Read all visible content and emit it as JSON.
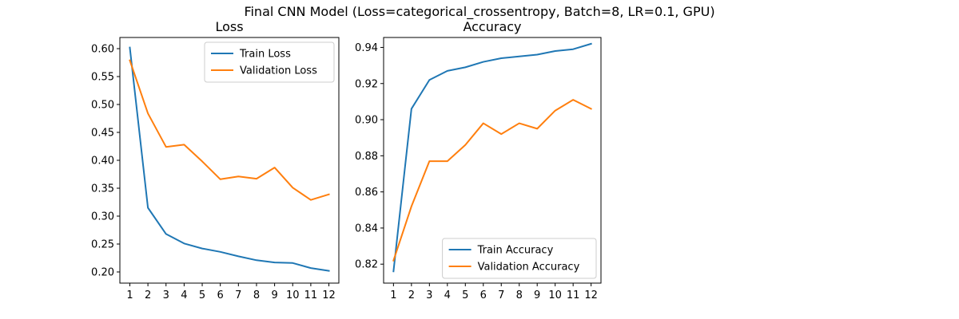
{
  "figure": {
    "suptitle": "Final CNN Model (Loss=categorical_crossentropy, Batch=8, LR=0.1, GPU)"
  },
  "chart_data": [
    {
      "type": "line",
      "title": "Loss",
      "xlabel": "",
      "ylabel": "",
      "x": [
        1,
        2,
        3,
        4,
        5,
        6,
        7,
        8,
        9,
        10,
        11,
        12
      ],
      "xticks": [
        "1",
        "2",
        "3",
        "4",
        "5",
        "6",
        "7",
        "8",
        "9",
        "10",
        "11",
        "12"
      ],
      "xlim": [
        0.45,
        12.55
      ],
      "ylim": [
        0.18,
        0.62
      ],
      "yticks": [
        "0.20",
        "0.25",
        "0.30",
        "0.35",
        "0.40",
        "0.45",
        "0.50",
        "0.55",
        "0.60"
      ],
      "yticks_values": [
        0.2,
        0.25,
        0.3,
        0.35,
        0.4,
        0.45,
        0.5,
        0.55,
        0.6
      ],
      "grid": false,
      "legend_position": "upper right",
      "series": [
        {
          "name": "Train Loss",
          "color": "#1f77b4",
          "values": [
            0.602,
            0.315,
            0.268,
            0.251,
            0.242,
            0.236,
            0.228,
            0.221,
            0.217,
            0.216,
            0.207,
            0.202
          ]
        },
        {
          "name": "Validation Loss",
          "color": "#ff7f0e",
          "values": [
            0.579,
            0.484,
            0.424,
            0.428,
            0.398,
            0.366,
            0.371,
            0.367,
            0.387,
            0.351,
            0.329,
            0.339
          ]
        }
      ]
    },
    {
      "type": "line",
      "title": "Accuracy",
      "xlabel": "",
      "ylabel": "",
      "x": [
        1,
        2,
        3,
        4,
        5,
        6,
        7,
        8,
        9,
        10,
        11,
        12
      ],
      "xticks": [
        "1",
        "2",
        "3",
        "4",
        "5",
        "6",
        "7",
        "8",
        "9",
        "10",
        "11",
        "12"
      ],
      "xlim": [
        0.45,
        12.55
      ],
      "ylim": [
        0.8095,
        0.9455
      ],
      "yticks": [
        "0.82",
        "0.84",
        "0.86",
        "0.88",
        "0.90",
        "0.92",
        "0.94"
      ],
      "yticks_values": [
        0.82,
        0.84,
        0.86,
        0.88,
        0.9,
        0.92,
        0.94
      ],
      "grid": false,
      "legend_position": "lower right",
      "series": [
        {
          "name": "Train Accuracy",
          "color": "#1f77b4",
          "values": [
            0.816,
            0.906,
            0.922,
            0.927,
            0.929,
            0.932,
            0.934,
            0.935,
            0.936,
            0.938,
            0.939,
            0.942
          ]
        },
        {
          "name": "Validation Accuracy",
          "color": "#ff7f0e",
          "values": [
            0.822,
            0.852,
            0.877,
            0.877,
            0.886,
            0.898,
            0.892,
            0.898,
            0.895,
            0.905,
            0.911,
            0.906
          ]
        }
      ]
    }
  ]
}
